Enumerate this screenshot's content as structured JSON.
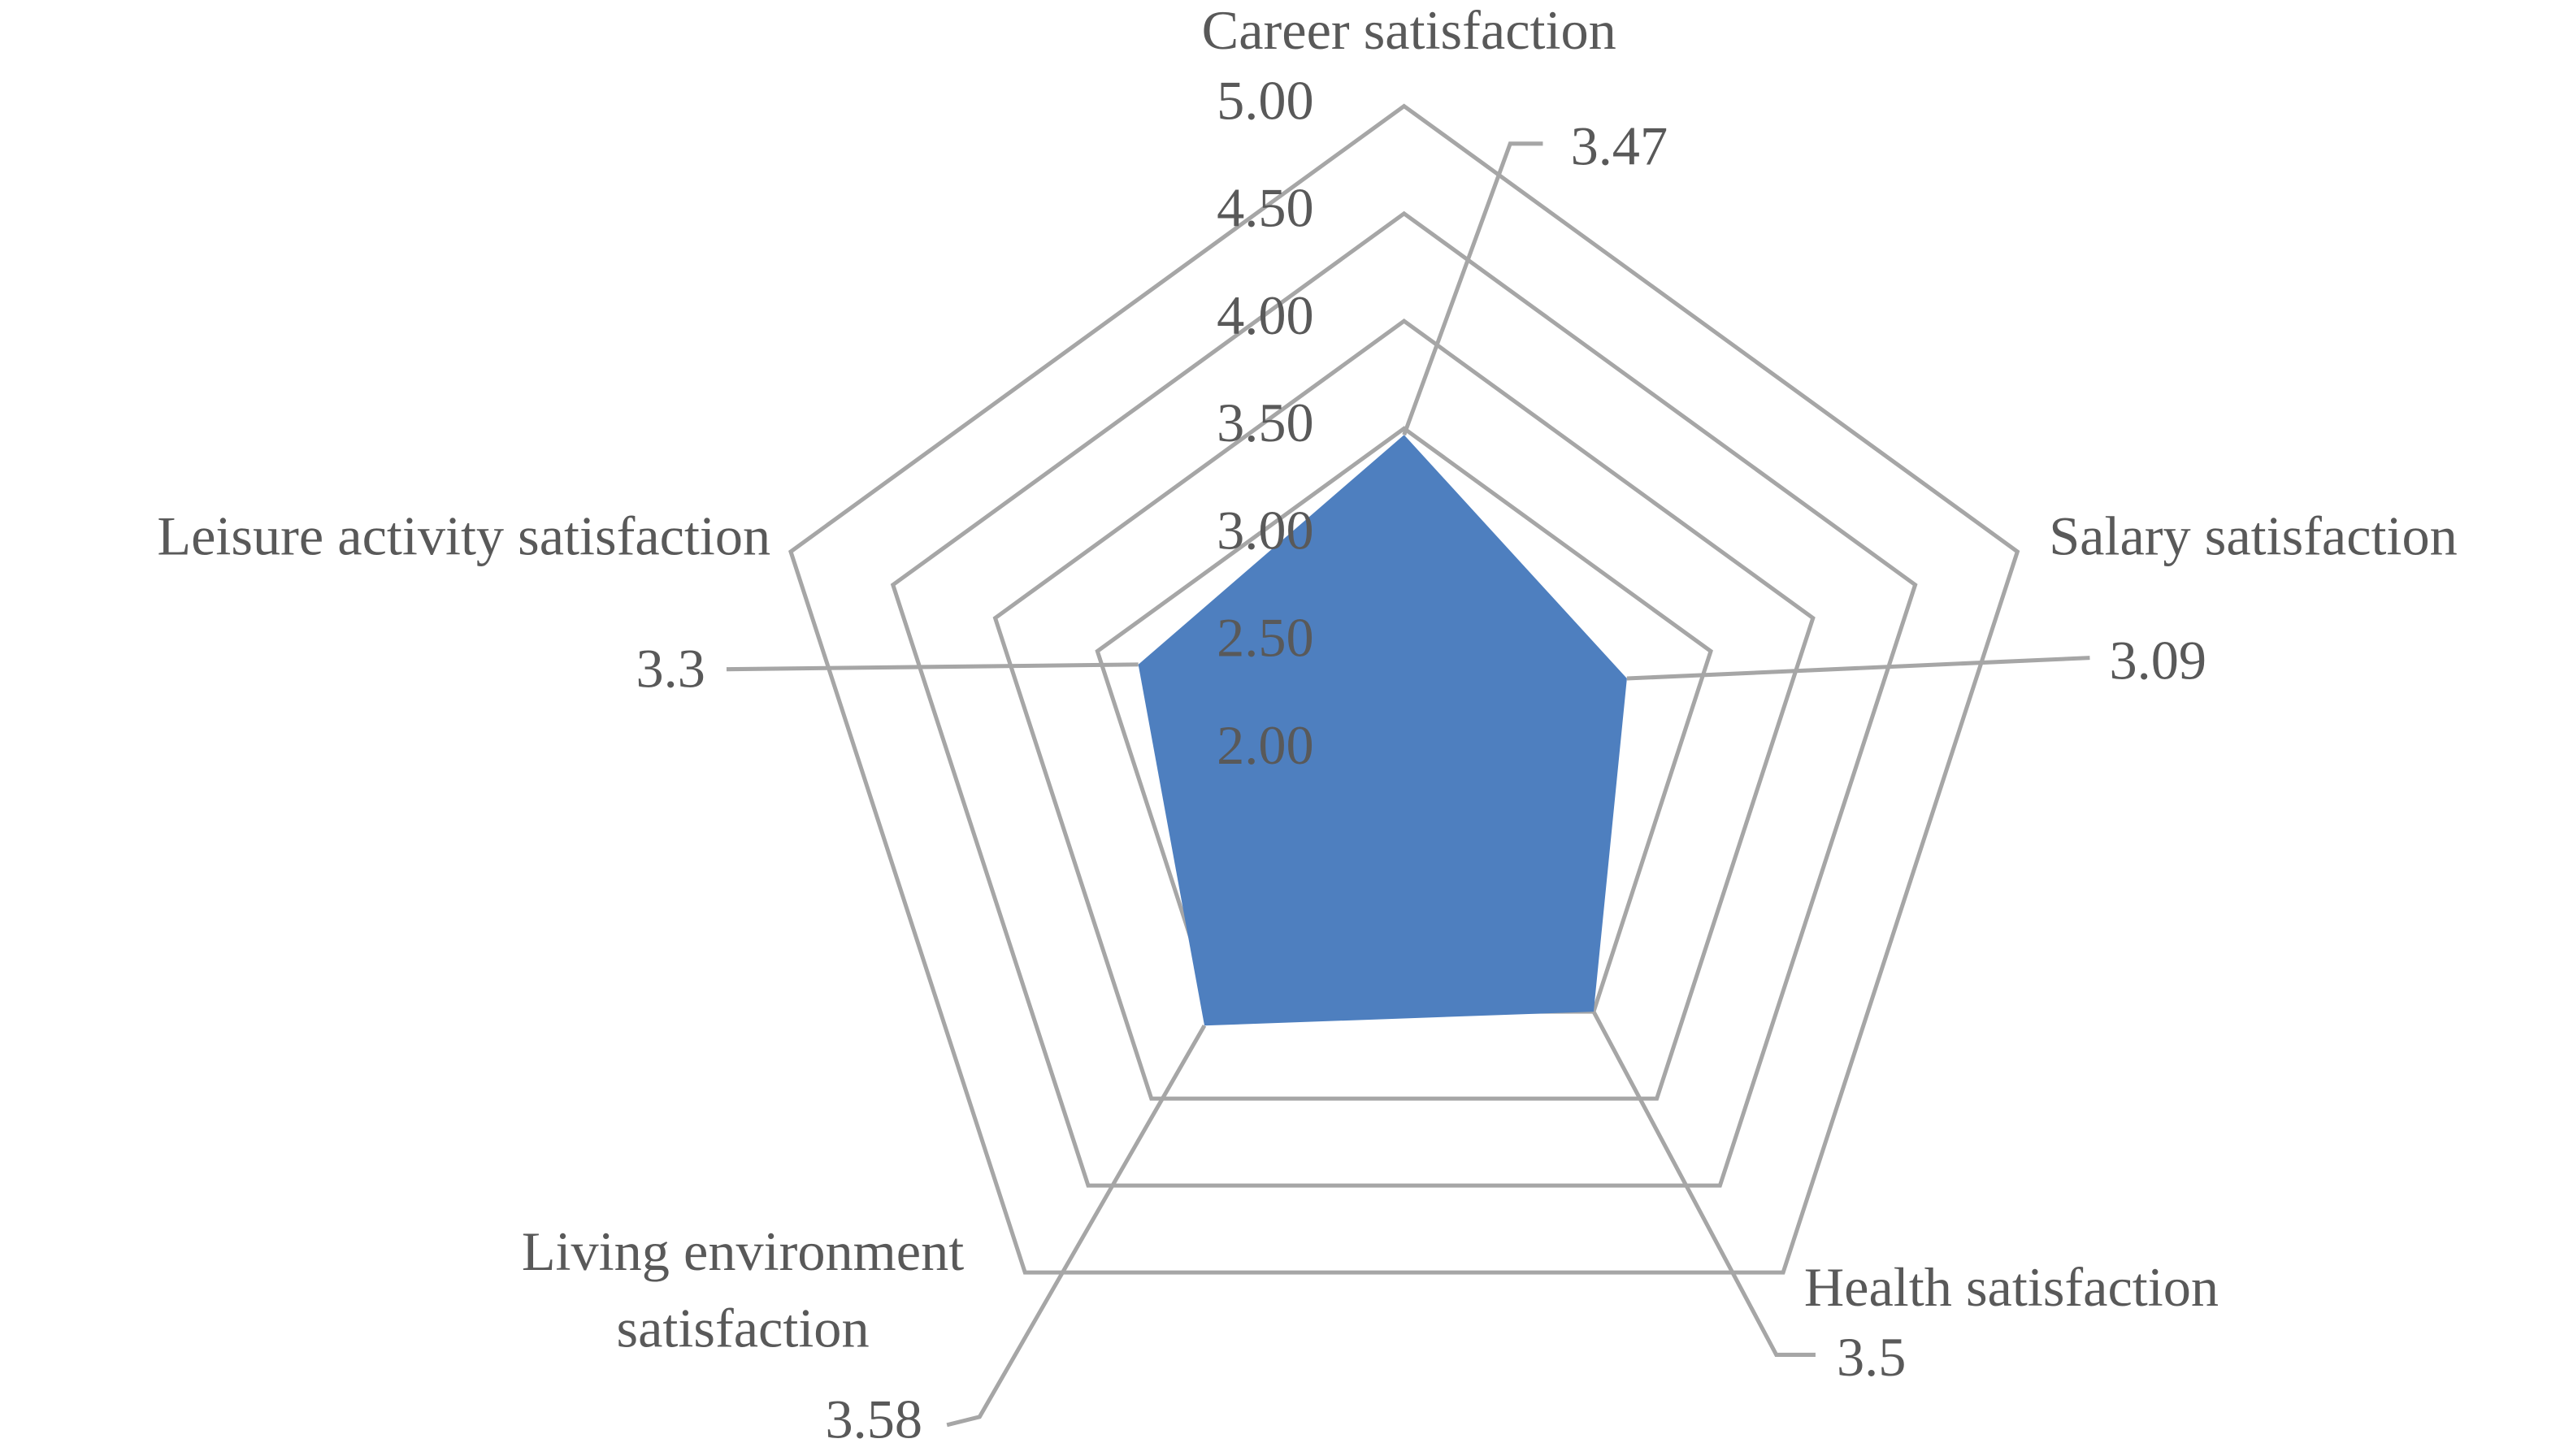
{
  "chart_data": {
    "type": "radar",
    "categories": [
      "Career satisfaction",
      "Salary satisfaction",
      "Health satisfaction",
      "Living environment satisfaction",
      "Leisure activity satisfaction"
    ],
    "values": [
      3.47,
      3.09,
      3.5,
      3.58,
      3.3
    ],
    "color": "#4e7fbf",
    "rlim": [
      2.0,
      5.0
    ],
    "rticks": [
      {
        "value": 2.0,
        "label": "2.00"
      },
      {
        "value": 2.5,
        "label": "2.50"
      },
      {
        "value": 3.0,
        "label": "3.00"
      },
      {
        "value": 3.5,
        "label": "3.50"
      },
      {
        "value": 4.0,
        "label": "4.00"
      },
      {
        "value": 4.5,
        "label": "4.50"
      },
      {
        "value": 5.0,
        "label": "5.00"
      }
    ],
    "grid": true
  }
}
